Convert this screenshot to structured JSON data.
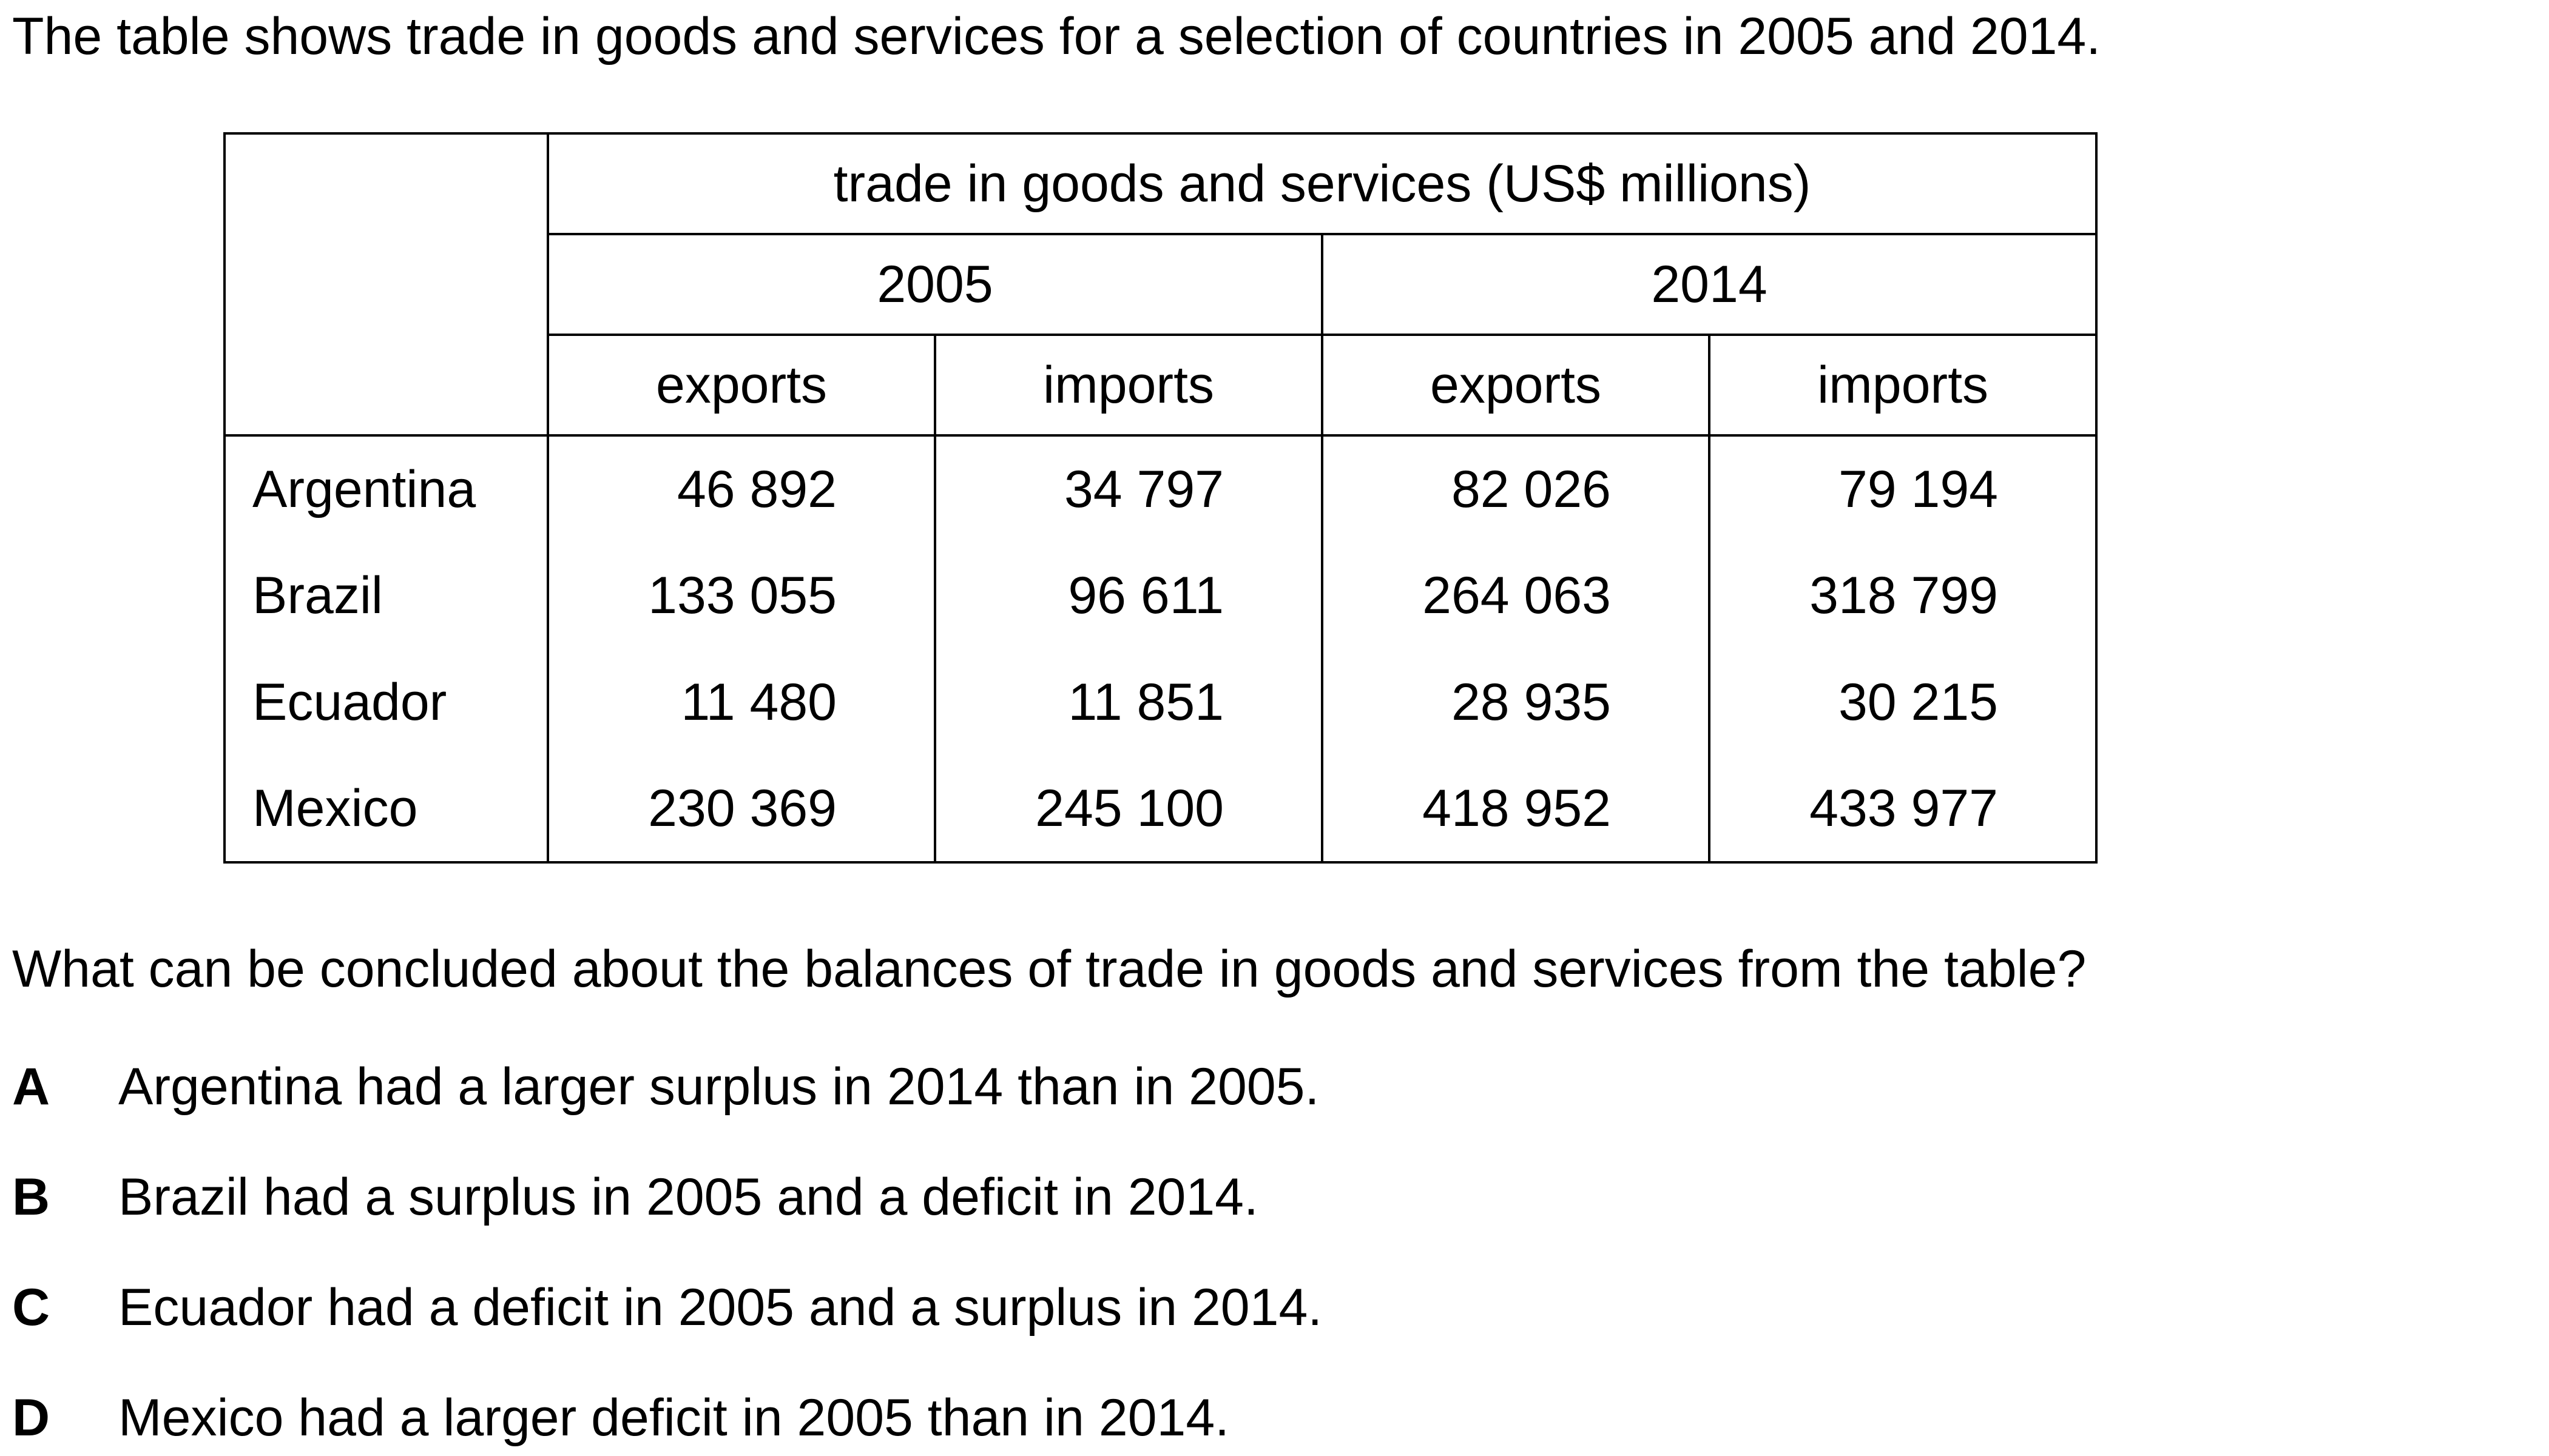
{
  "intro": "The table shows trade in goods and services for a selection of countries in 2005 and 2014.",
  "table": {
    "caption": "trade in goods and services (US$ millions)",
    "years": [
      "2005",
      "2014"
    ],
    "columns": [
      "exports",
      "imports",
      "exports",
      "imports"
    ],
    "rows": [
      {
        "country": "Argentina",
        "values": [
          "46 892",
          "34 797",
          "82 026",
          "79 194"
        ]
      },
      {
        "country": "Brazil",
        "values": [
          "133 055",
          "96 611",
          "264 063",
          "318 799"
        ]
      },
      {
        "country": "Ecuador",
        "values": [
          "11 480",
          "11 851",
          "28 935",
          "30 215"
        ]
      },
      {
        "country": "Mexico",
        "values": [
          "230 369",
          "245 100",
          "418 952",
          "433 977"
        ]
      }
    ]
  },
  "question": "What can be concluded about the balances of trade in goods and services from the table?",
  "options": [
    {
      "letter": "A",
      "text": "Argentina had a larger surplus in 2014 than in 2005."
    },
    {
      "letter": "B",
      "text": "Brazil had a surplus in 2005 and a deficit in 2014."
    },
    {
      "letter": "C",
      "text": "Ecuador had a deficit in 2005 and a surplus in 2014."
    },
    {
      "letter": "D",
      "text": "Mexico had a larger deficit in 2005 than in 2014."
    }
  ]
}
